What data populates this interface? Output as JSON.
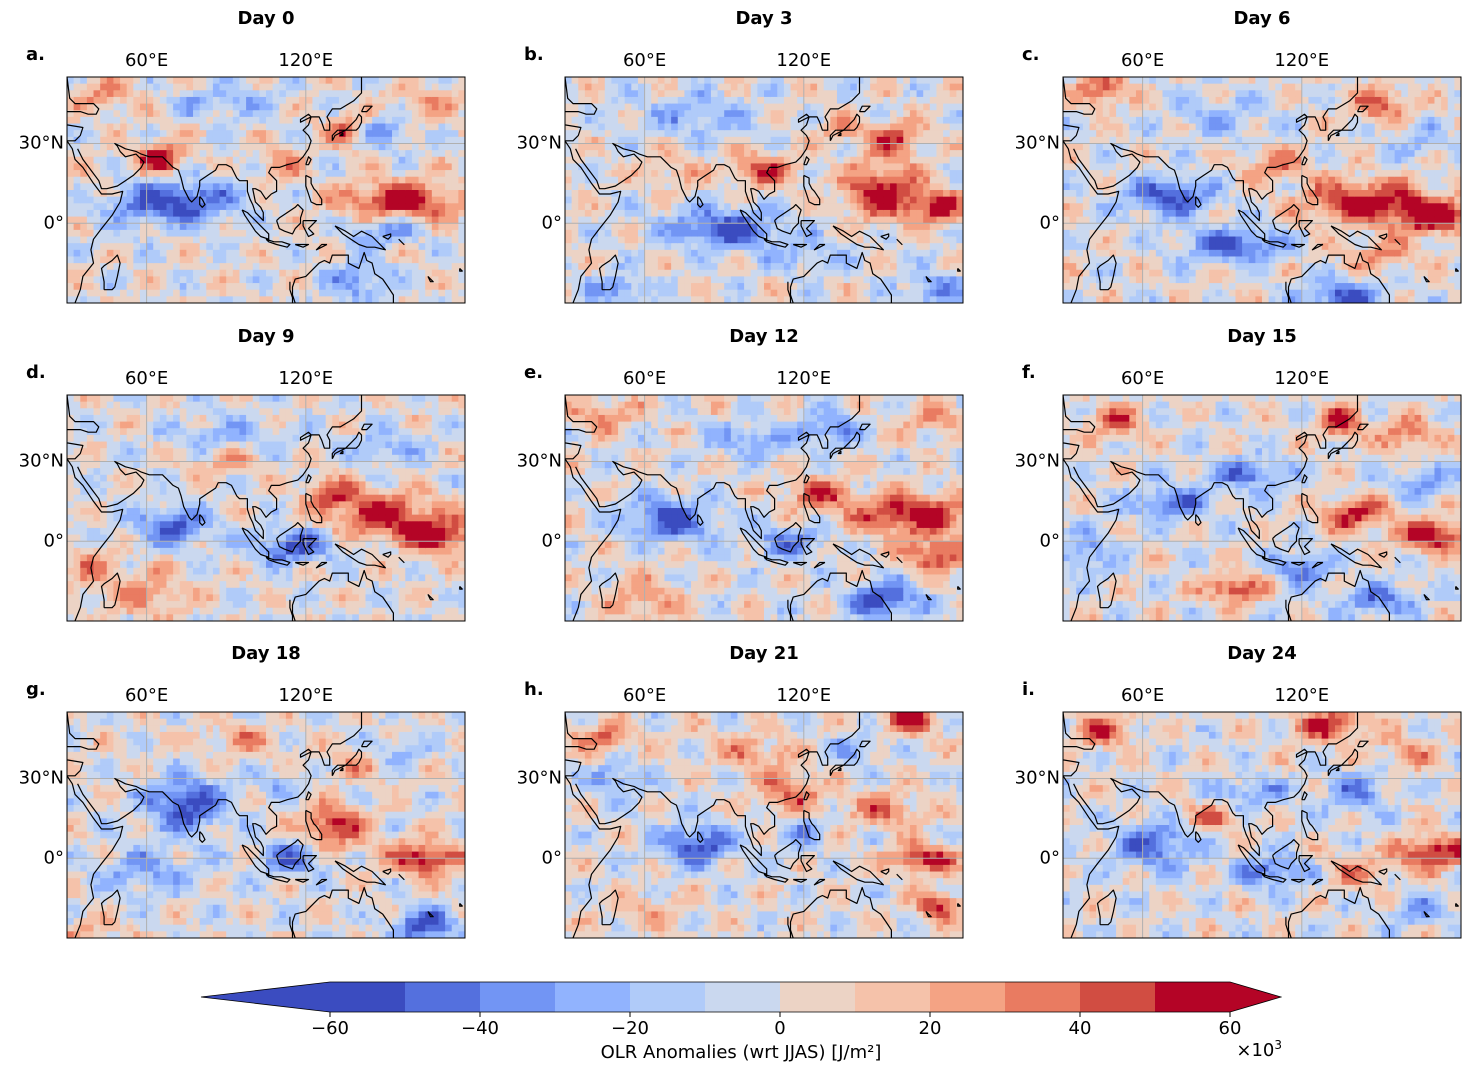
{
  "chart_data": {
    "type": "heatmap",
    "description_units": "OLR anomaly composites, 3x3 grid of map panels",
    "lon_ticks": [
      "60°E",
      "120°E"
    ],
    "lat_ticks": [
      "30°N",
      "0°"
    ],
    "lon_tick_values": [
      60,
      120
    ],
    "lat_tick_values": [
      30,
      0
    ],
    "lon_range": [
      30,
      180
    ],
    "lat_range": [
      -30,
      55
    ],
    "panels": [
      {
        "letter": "a.",
        "title": "Day 0",
        "blobs": [
          [
            70,
            8,
            -60,
            24,
            8
          ],
          [
            150,
            -2,
            -40,
            14,
            6
          ],
          [
            65,
            24,
            55,
            10,
            6
          ],
          [
            155,
            8,
            60,
            22,
            8
          ],
          [
            110,
            22,
            30,
            8,
            6
          ],
          [
            135,
            35,
            40,
            8,
            6
          ],
          [
            45,
            48,
            30,
            12,
            6
          ],
          [
            90,
            45,
            -25,
            18,
            6
          ],
          [
            150,
            34,
            -35,
            10,
            6
          ],
          [
            140,
            -22,
            -35,
            10,
            8
          ],
          [
            165,
            45,
            25,
            12,
            6
          ],
          [
            40,
            15,
            10,
            10,
            8
          ]
        ]
      },
      {
        "letter": "b.",
        "title": "Day 3",
        "blobs": [
          [
            90,
            -2,
            -55,
            22,
            7
          ],
          [
            150,
            12,
            60,
            14,
            10
          ],
          [
            170,
            6,
            55,
            10,
            6
          ],
          [
            105,
            20,
            45,
            12,
            6
          ],
          [
            155,
            32,
            45,
            10,
            6
          ],
          [
            120,
            -12,
            -20,
            18,
            6
          ],
          [
            50,
            -25,
            -40,
            10,
            5
          ],
          [
            80,
            40,
            -25,
            22,
            8
          ],
          [
            170,
            -25,
            -40,
            10,
            6
          ],
          [
            135,
            35,
            30,
            8,
            5
          ],
          [
            70,
            20,
            20,
            12,
            6
          ]
        ]
      },
      {
        "letter": "c.",
        "title": "Day 6",
        "blobs": [
          [
            70,
            10,
            -55,
            16,
            7
          ],
          [
            95,
            -8,
            -55,
            18,
            6
          ],
          [
            145,
            8,
            60,
            24,
            8
          ],
          [
            170,
            2,
            60,
            14,
            6
          ],
          [
            150,
            -12,
            25,
            16,
            6
          ],
          [
            110,
            22,
            35,
            12,
            6
          ],
          [
            150,
            45,
            45,
            10,
            6
          ],
          [
            45,
            50,
            45,
            10,
            6
          ],
          [
            135,
            -28,
            -55,
            14,
            6
          ],
          [
            90,
            40,
            -20,
            20,
            8
          ],
          [
            165,
            30,
            -20,
            12,
            6
          ]
        ]
      },
      {
        "letter": "d.",
        "title": "Day 9",
        "blobs": [
          [
            70,
            6,
            -50,
            14,
            7
          ],
          [
            115,
            -2,
            -55,
            14,
            6
          ],
          [
            150,
            10,
            55,
            20,
            8
          ],
          [
            170,
            2,
            60,
            14,
            6
          ],
          [
            130,
            18,
            40,
            10,
            6
          ],
          [
            90,
            30,
            25,
            12,
            6
          ],
          [
            40,
            -10,
            25,
            12,
            8
          ],
          [
            60,
            -20,
            30,
            14,
            8
          ],
          [
            90,
            40,
            -25,
            20,
            6
          ],
          [
            150,
            35,
            -25,
            14,
            6
          ]
        ]
      },
      {
        "letter": "e.",
        "title": "Day 12",
        "blobs": [
          [
            70,
            8,
            -55,
            16,
            8
          ],
          [
            115,
            0,
            -40,
            14,
            6
          ],
          [
            160,
            10,
            60,
            22,
            8
          ],
          [
            170,
            -5,
            50,
            12,
            6
          ],
          [
            125,
            18,
            45,
            12,
            6
          ],
          [
            150,
            -22,
            -60,
            14,
            6
          ],
          [
            100,
            38,
            -30,
            16,
            6
          ],
          [
            130,
            42,
            -40,
            10,
            6
          ],
          [
            45,
            48,
            30,
            12,
            6
          ],
          [
            170,
            45,
            25,
            12,
            6
          ],
          [
            60,
            -22,
            25,
            14,
            8
          ]
        ]
      },
      {
        "letter": "f.",
        "title": "Day 15",
        "blobs": [
          [
            70,
            14,
            -45,
            14,
            6
          ],
          [
            140,
            10,
            55,
            12,
            6
          ],
          [
            170,
            2,
            60,
            14,
            6
          ],
          [
            95,
            -18,
            55,
            10,
            5
          ],
          [
            135,
            45,
            55,
            8,
            6
          ],
          [
            160,
            40,
            40,
            10,
            6
          ],
          [
            100,
            25,
            -40,
            16,
            6
          ],
          [
            150,
            -22,
            -40,
            14,
            6
          ],
          [
            50,
            45,
            40,
            10,
            6
          ],
          [
            120,
            -10,
            -45,
            10,
            6
          ],
          [
            165,
            22,
            -35,
            10,
            6
          ],
          [
            40,
            -5,
            -30,
            10,
            8
          ]
        ]
      },
      {
        "letter": "g.",
        "title": "Day 18",
        "blobs": [
          [
            75,
            20,
            -60,
            14,
            10
          ],
          [
            60,
            -5,
            -30,
            18,
            8
          ],
          [
            130,
            12,
            55,
            12,
            8
          ],
          [
            165,
            0,
            60,
            14,
            6
          ],
          [
            115,
            0,
            -45,
            12,
            6
          ],
          [
            165,
            -25,
            -55,
            12,
            6
          ],
          [
            140,
            35,
            20,
            14,
            6
          ],
          [
            95,
            45,
            25,
            14,
            6
          ],
          [
            40,
            -28,
            20,
            14,
            5
          ],
          [
            155,
            40,
            -25,
            10,
            6
          ],
          [
            110,
            28,
            -20,
            10,
            6
          ]
        ]
      },
      {
        "letter": "h.",
        "title": "Day 21",
        "blobs": [
          [
            80,
            5,
            -55,
            14,
            7
          ],
          [
            115,
            25,
            40,
            12,
            8
          ],
          [
            160,
            52,
            55,
            10,
            5
          ],
          [
            165,
            0,
            60,
            12,
            5
          ],
          [
            150,
            18,
            35,
            14,
            6
          ],
          [
            120,
            10,
            -30,
            10,
            6
          ],
          [
            50,
            30,
            -35,
            10,
            6
          ],
          [
            45,
            45,
            35,
            12,
            6
          ],
          [
            170,
            -18,
            55,
            8,
            5
          ],
          [
            100,
            40,
            30,
            14,
            6
          ],
          [
            60,
            -20,
            20,
            14,
            6
          ],
          [
            140,
            40,
            -25,
            10,
            6
          ]
        ]
      },
      {
        "letter": "i.",
        "title": "Day 24",
        "blobs": [
          [
            65,
            5,
            -50,
            16,
            8
          ],
          [
            110,
            -5,
            -45,
            14,
            6
          ],
          [
            170,
            2,
            60,
            14,
            6
          ],
          [
            140,
            25,
            -35,
            12,
            8
          ],
          [
            100,
            25,
            -30,
            14,
            6
          ],
          [
            45,
            48,
            45,
            10,
            6
          ],
          [
            130,
            50,
            50,
            14,
            6
          ],
          [
            160,
            40,
            25,
            12,
            6
          ],
          [
            85,
            15,
            35,
            10,
            6
          ],
          [
            140,
            -5,
            30,
            12,
            6
          ],
          [
            165,
            -20,
            -30,
            10,
            6
          ]
        ]
      }
    ],
    "colorbar": {
      "levels": [
        -60,
        -50,
        -40,
        -30,
        -20,
        -10,
        0,
        10,
        20,
        30,
        40,
        50,
        60
      ],
      "colors": [
        "#3b4cc0",
        "#5470de",
        "#7295f4",
        "#91b3fe",
        "#b0cbf9",
        "#cad8ef",
        "#ecd3c5",
        "#f5c2aa",
        "#f4a384",
        "#e97b61",
        "#d14d42",
        "#b40426"
      ],
      "extend": "both",
      "ticks": [
        "−60",
        "−40",
        "−20",
        "0",
        "20",
        "40",
        "60"
      ],
      "tick_values": [
        -60,
        -40,
        -20,
        0,
        20,
        40,
        60
      ],
      "label": "OLR Anomalies (wrt JJAS) [J/m²]",
      "multiplier_base": "×10",
      "multiplier_exp": "3"
    }
  }
}
